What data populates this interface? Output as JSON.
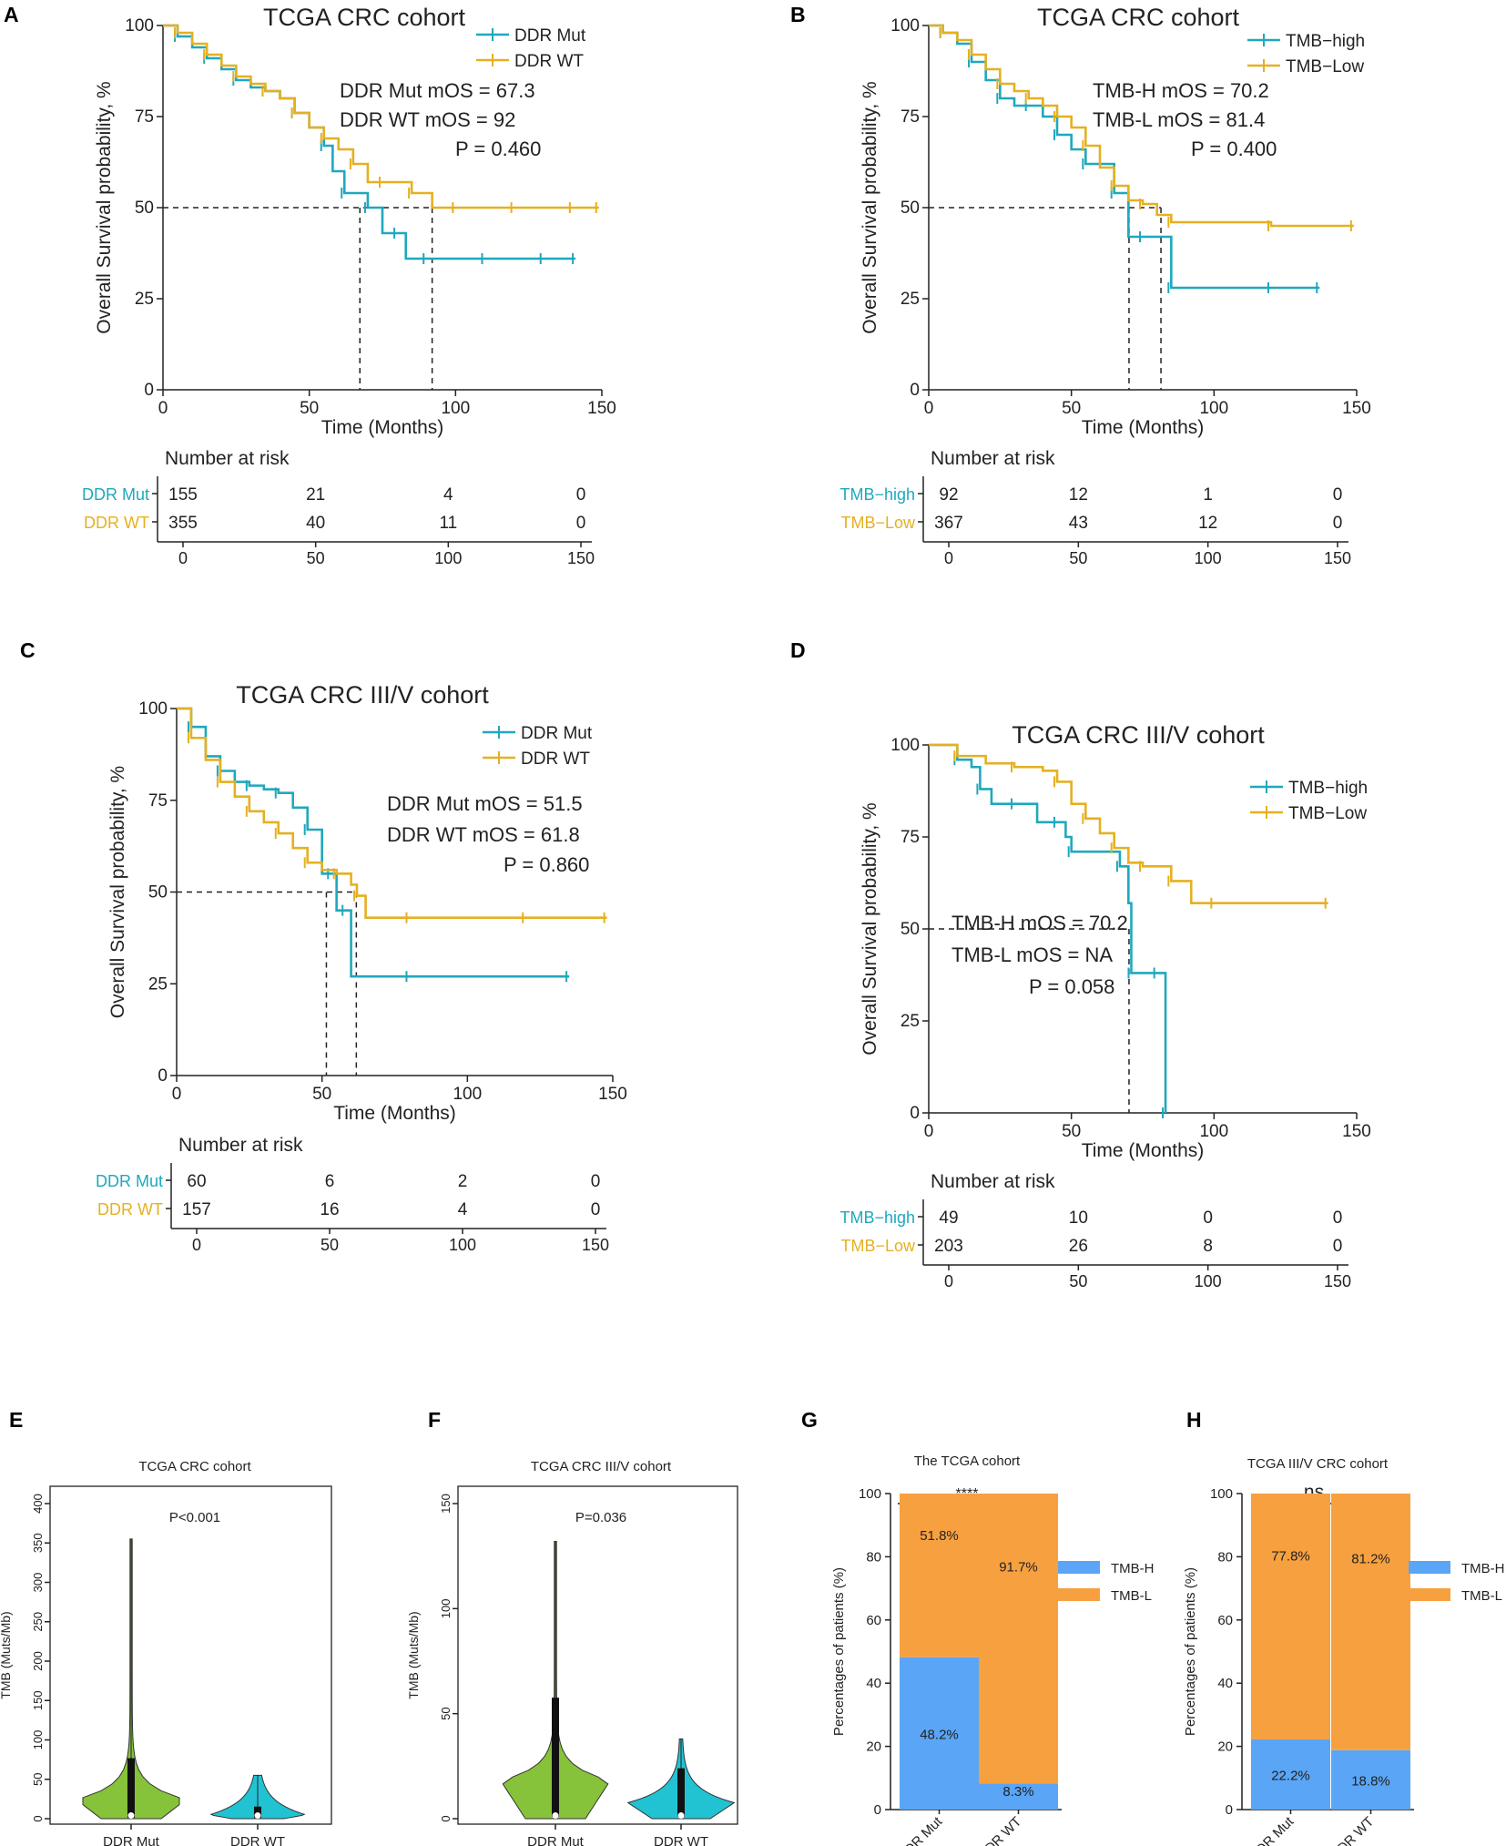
{
  "colors": {
    "mut": "#1fa8bd",
    "wt": "#e5b021",
    "tmb_h": "#5aa5f5",
    "tmb_l": "#f7a040",
    "violin_mut": "#86c33a",
    "violin_wt": "#21c3d3",
    "axis": "#222222"
  },
  "chart_data": [
    {
      "type": "line",
      "panel": "A",
      "title": "TCGA CRC cohort",
      "xlabel": "Time (Months)",
      "ylabel": "Overall Survival probability, %",
      "xlim": [
        0,
        150
      ],
      "ylim": [
        0,
        100
      ],
      "xticks": [
        "0",
        "50",
        "100",
        "150"
      ],
      "yticks": [
        "0",
        "25",
        "50",
        "75",
        "100"
      ],
      "legend_position": "top-right",
      "series": [
        {
          "name": "DDR Mut",
          "color_key": "mut",
          "x": [
            0,
            5,
            10,
            15,
            20,
            25,
            30,
            35,
            40,
            45,
            50,
            55,
            58,
            62,
            67,
            70,
            75,
            80,
            83,
            90,
            100,
            110,
            120,
            130,
            141
          ],
          "y": [
            100,
            97,
            94,
            91,
            88,
            85,
            83,
            82,
            80,
            76,
            72,
            67,
            60,
            54,
            54,
            50,
            43,
            43,
            36,
            36,
            36,
            36,
            36,
            36,
            36
          ]
        },
        {
          "name": "DDR WT",
          "color_key": "wt",
          "x": [
            0,
            5,
            10,
            15,
            20,
            25,
            30,
            35,
            40,
            45,
            50,
            55,
            60,
            65,
            70,
            75,
            80,
            85,
            92,
            100,
            110,
            120,
            130,
            140,
            149
          ],
          "y": [
            100,
            98,
            95,
            92,
            89,
            86,
            84,
            82,
            80,
            76,
            72,
            69,
            66,
            62,
            57,
            57,
            57,
            54,
            50,
            50,
            50,
            50,
            50,
            50,
            50
          ]
        }
      ],
      "median_lines": [
        67.3,
        92
      ],
      "annotations": [
        "DDR Mut mOS = 67.3",
        "DDR WT mOS = 92",
        "P = 0.460"
      ],
      "risk_table": {
        "title": "Number at risk",
        "rows": [
          {
            "label": "DDR Mut",
            "color_key": "mut",
            "values": [
              "155",
              "21",
              "4",
              "0"
            ]
          },
          {
            "label": "DDR WT",
            "color_key": "wt",
            "values": [
              "355",
              "40",
              "11",
              "0"
            ]
          }
        ],
        "xticks": [
          "0",
          "50",
          "100",
          "150"
        ]
      }
    },
    {
      "type": "line",
      "panel": "B",
      "title": "TCGA CRC cohort",
      "xlabel": "Time (Months)",
      "ylabel": "Overall Survival probability, %",
      "xlim": [
        0,
        150
      ],
      "ylim": [
        0,
        100
      ],
      "xticks": [
        "0",
        "50",
        "100",
        "150"
      ],
      "yticks": [
        "0",
        "25",
        "50",
        "75",
        "100"
      ],
      "legend_position": "top-right",
      "series": [
        {
          "name": "TMB−high",
          "color_key": "mut",
          "x": [
            0,
            5,
            10,
            15,
            20,
            25,
            30,
            35,
            40,
            45,
            50,
            55,
            60,
            65,
            70,
            75,
            82,
            85,
            100,
            120,
            137
          ],
          "y": [
            100,
            98,
            95,
            90,
            85,
            80,
            78,
            78,
            75,
            70,
            66,
            62,
            62,
            54,
            42,
            42,
            42,
            28,
            28,
            28,
            28
          ]
        },
        {
          "name": "TMB−Low",
          "color_key": "wt",
          "x": [
            0,
            5,
            10,
            15,
            20,
            25,
            30,
            35,
            40,
            45,
            50,
            55,
            60,
            65,
            70,
            75,
            80,
            85,
            100,
            120,
            149
          ],
          "y": [
            100,
            98,
            96,
            92,
            88,
            84,
            82,
            80,
            78,
            75,
            72,
            67,
            61,
            56,
            52,
            51,
            48,
            46,
            46,
            45,
            45
          ]
        }
      ],
      "median_lines": [
        70.2,
        81.4
      ],
      "annotations": [
        "TMB-H mOS = 70.2",
        "TMB-L mOS = 81.4",
        "P = 0.400"
      ],
      "risk_table": {
        "title": "Number at risk",
        "rows": [
          {
            "label": "TMB−high",
            "color_key": "mut",
            "values": [
              "92",
              "12",
              "1",
              "0"
            ]
          },
          {
            "label": "TMB−Low",
            "color_key": "wt",
            "values": [
              "367",
              "43",
              "12",
              "0"
            ]
          }
        ],
        "xticks": [
          "0",
          "50",
          "100",
          "150"
        ]
      }
    },
    {
      "type": "line",
      "panel": "C",
      "title": "TCGA CRC III/V cohort",
      "xlabel": "Time (Months)",
      "ylabel": "Overall Survival probability, %",
      "xlim": [
        0,
        150
      ],
      "ylim": [
        0,
        100
      ],
      "xticks": [
        "0",
        "50",
        "100",
        "150"
      ],
      "yticks": [
        "0",
        "25",
        "50",
        "75",
        "100"
      ],
      "legend_position": "top-right",
      "series": [
        {
          "name": "DDR Mut",
          "color_key": "mut",
          "x": [
            0,
            5,
            10,
            15,
            20,
            25,
            30,
            35,
            40,
            45,
            50,
            53,
            55,
            58,
            60,
            80,
            100,
            135
          ],
          "y": [
            100,
            95,
            87,
            83,
            80,
            79,
            78,
            77,
            73,
            67,
            55,
            55,
            45,
            45,
            27,
            27,
            27,
            27
          ]
        },
        {
          "name": "DDR WT",
          "color_key": "wt",
          "x": [
            0,
            5,
            10,
            15,
            20,
            25,
            30,
            35,
            40,
            45,
            50,
            55,
            60,
            62,
            65,
            80,
            100,
            120,
            148
          ],
          "y": [
            100,
            92,
            86,
            80,
            76,
            72,
            69,
            66,
            62,
            58,
            56,
            55,
            52,
            49,
            43,
            43,
            43,
            43,
            43
          ]
        }
      ],
      "median_lines": [
        51.5,
        61.8
      ],
      "annotations": [
        "DDR Mut mOS = 51.5",
        "DDR WT mOS = 61.8",
        "P = 0.860"
      ],
      "risk_table": {
        "title": "Number at risk",
        "rows": [
          {
            "label": "DDR Mut",
            "color_key": "mut",
            "values": [
              "60",
              "6",
              "2",
              "0"
            ]
          },
          {
            "label": "DDR WT",
            "color_key": "wt",
            "values": [
              "157",
              "16",
              "4",
              "0"
            ]
          }
        ],
        "xticks": [
          "0",
          "50",
          "100",
          "150"
        ]
      }
    },
    {
      "type": "line",
      "panel": "D",
      "title": "TCGA CRC III/V cohort",
      "xlabel": "Time (Months)",
      "ylabel": "Overall Survival probability, %",
      "xlim": [
        0,
        150
      ],
      "ylim": [
        0,
        100
      ],
      "xticks": [
        "0",
        "50",
        "100",
        "150"
      ],
      "yticks": [
        "0",
        "25",
        "50",
        "75",
        "100"
      ],
      "legend_position": "top-right",
      "series": [
        {
          "name": "TMB−high",
          "color_key": "mut",
          "x": [
            0,
            10,
            15,
            18,
            22,
            30,
            38,
            45,
            48,
            50,
            60,
            67,
            70,
            71,
            75,
            80,
            83
          ],
          "y": [
            100,
            96,
            94,
            88,
            84,
            84,
            79,
            79,
            75,
            71,
            71,
            67,
            57,
            38,
            38,
            38,
            0
          ]
        },
        {
          "name": "TMB−Low",
          "color_key": "wt",
          "x": [
            0,
            10,
            20,
            30,
            40,
            45,
            50,
            55,
            60,
            65,
            70,
            75,
            80,
            85,
            92,
            100,
            120,
            140
          ],
          "y": [
            100,
            97,
            95,
            94,
            93,
            90,
            84,
            80,
            76,
            72,
            68,
            67,
            67,
            63,
            57,
            57,
            57,
            57
          ]
        }
      ],
      "median_lines": [
        70.2
      ],
      "annotations": [
        "TMB-H mOS = 70.2",
        "TMB-L mOS = NA",
        "P = 0.058"
      ],
      "risk_table": {
        "title": "Number at risk",
        "rows": [
          {
            "label": "TMB−high",
            "color_key": "mut",
            "values": [
              "49",
              "10",
              "0",
              "0"
            ]
          },
          {
            "label": "TMB−Low",
            "color_key": "wt",
            "values": [
              "203",
              "26",
              "8",
              "0"
            ]
          }
        ],
        "xticks": [
          "0",
          "50",
          "100",
          "150"
        ]
      }
    },
    {
      "type": "violin",
      "panel": "E",
      "title": "TCGA CRC cohort",
      "ylabel": "TMB (Muts/Mb)",
      "ylim": [
        0,
        400
      ],
      "yticks": [
        "0",
        "50",
        "100",
        "150",
        "200",
        "250",
        "300",
        "350",
        "400"
      ],
      "categories": [
        "DDR Mut",
        "DDR WT"
      ],
      "max_values": [
        355,
        55
      ],
      "annotation": "P<0.001"
    },
    {
      "type": "violin",
      "panel": "F",
      "title": "TCGA CRC III/V cohort",
      "ylabel": "TMB (Muts/Mb)",
      "ylim": [
        0,
        150
      ],
      "yticks": [
        "0",
        "50",
        "100",
        "150"
      ],
      "categories": [
        "DDR Mut",
        "DDR WT"
      ],
      "max_values": [
        132,
        38
      ],
      "annotation": "P=0.036"
    },
    {
      "type": "bar",
      "stacked": true,
      "panel": "G",
      "title": "The TCGA cohort",
      "ylabel": "Percentages of patients (%)",
      "ylim": [
        0,
        100
      ],
      "yticks": [
        "0",
        "20",
        "40",
        "60",
        "80",
        "100"
      ],
      "categories": [
        "DDR Mut",
        "DDR WT"
      ],
      "series": [
        {
          "name": "TMB-H",
          "color_key": "tmb_h",
          "values": [
            48.2,
            8.3
          ],
          "labels": [
            "48.2%",
            "8.3%"
          ]
        },
        {
          "name": "TMB-L",
          "color_key": "tmb_l",
          "values": [
            51.8,
            91.7
          ],
          "labels": [
            "51.8%",
            "91.7%"
          ]
        }
      ],
      "significance": "****"
    },
    {
      "type": "bar",
      "stacked": true,
      "panel": "H",
      "title": "TCGA III/V CRC cohort",
      "ylabel": "Percentages of patients (%)",
      "ylim": [
        0,
        100
      ],
      "yticks": [
        "0",
        "20",
        "40",
        "60",
        "80",
        "100"
      ],
      "categories": [
        "DDR Mut",
        "DDR WT"
      ],
      "series": [
        {
          "name": "TMB-H",
          "color_key": "tmb_h",
          "values": [
            22.2,
            18.8
          ],
          "labels": [
            "22.2%",
            "18.8%"
          ]
        },
        {
          "name": "TMB-L",
          "color_key": "tmb_l",
          "values": [
            77.8,
            81.2
          ],
          "labels": [
            "77.8%",
            "81.2%"
          ]
        }
      ],
      "significance": "ns"
    }
  ]
}
